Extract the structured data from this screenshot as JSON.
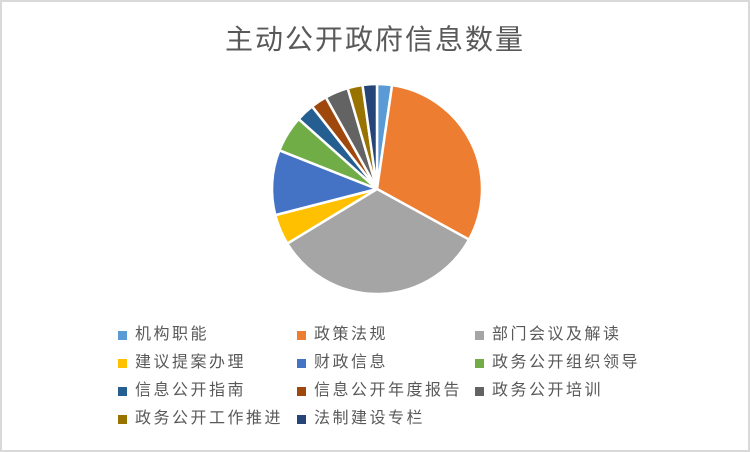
{
  "chart_data": {
    "type": "pie",
    "title": "主动公开政府信息数量",
    "categories": [
      "机构职能",
      "政策法规",
      "部门会议及解读",
      "建议提案办理",
      "财政信息",
      "政务公开组织领导",
      "信息公开指南",
      "信息公开年度报告",
      "政务公开培训",
      "政务公开工作推进",
      "法制建设专栏"
    ],
    "values_percent": [
      2.3,
      30.7,
      33.3,
      4.7,
      10.0,
      5.6,
      2.8,
      2.5,
      3.6,
      2.3,
      2.2
    ],
    "colors": [
      "#5B9BD5",
      "#ED7D31",
      "#A5A5A5",
      "#FFC000",
      "#4472C4",
      "#70AD47",
      "#255E91",
      "#9E480E",
      "#636363",
      "#997300",
      "#264478"
    ],
    "start_angle_deg": 0,
    "direction": "clockwise",
    "data_labels": "none",
    "legend_position": "bottom",
    "legend_rows": [
      [
        0,
        1,
        2
      ],
      [
        3,
        4,
        5
      ],
      [
        6,
        7,
        8
      ],
      [
        9,
        10
      ]
    ]
  },
  "styles": {
    "background": "#FFFFFF",
    "border_color": "#D9D9D9",
    "title_color": "#595959",
    "legend_text_color": "#595959",
    "slice_gap_color": "#FFFFFF"
  }
}
